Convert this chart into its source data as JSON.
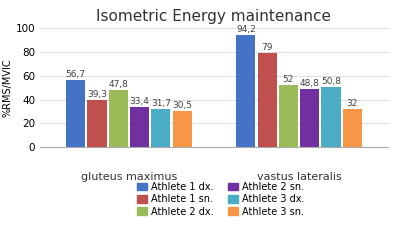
{
  "title": "Isometric Energy maintenance",
  "ylabel": "%RMS/MVIC",
  "groups": [
    "gluteus maximus",
    "vastus lateralis"
  ],
  "series": [
    {
      "label": "Athlete 1 dx.",
      "color": "#4472C4",
      "values": [
        56.7,
        94.2
      ]
    },
    {
      "label": "Athlete 1 sn.",
      "color": "#C0504D",
      "values": [
        39.3,
        79.0
      ]
    },
    {
      "label": "Athlete 2 dx.",
      "color": "#9BBB59",
      "values": [
        47.8,
        52.0
      ]
    },
    {
      "label": "Athlete 2 sn.",
      "color": "#7030A0",
      "values": [
        33.4,
        48.8
      ]
    },
    {
      "label": "Athlete 3 dx.",
      "color": "#4BACC6",
      "values": [
        31.7,
        50.8
      ]
    },
    {
      "label": "Athlete 3 sn.",
      "color": "#F79646",
      "values": [
        30.5,
        32.0
      ]
    }
  ],
  "ylim": [
    0,
    100
  ],
  "yticks": [
    0,
    20,
    40,
    60,
    80,
    100
  ],
  "bar_width": 0.055,
  "group_centers": [
    0.28,
    0.72
  ],
  "xlim": [
    0.05,
    0.95
  ],
  "value_labels": [
    "56,7",
    "39,3",
    "47,8",
    "33,4",
    "31,7",
    "30,5",
    "94,2",
    "79",
    "52",
    "48,8",
    "50,8",
    "32"
  ],
  "label_fontsize": 6.5,
  "title_fontsize": 11,
  "legend_fontsize": 7,
  "tick_fontsize": 7.5,
  "ylabel_fontsize": 7,
  "group_label_fontsize": 8,
  "background_color": "#ffffff"
}
